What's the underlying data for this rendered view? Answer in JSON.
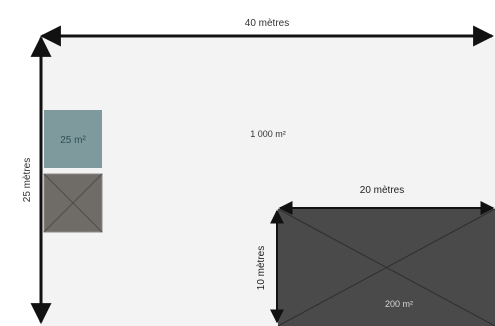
{
  "diagram": {
    "top_dimension_label": "40 mètres",
    "left_dimension_label": "25 mètres",
    "total_area_label": "1 000 m²",
    "small_area_label": "25 m²",
    "building_width_label": "20 mètres",
    "building_height_label": "10 mètres",
    "building_area_label": "200 m²"
  },
  "colors": {
    "field": "#f3f3f3",
    "arrow": "#111111",
    "small_blue": "#7f9a9d",
    "small_grey": "#6f6b67",
    "building": "#4a4a4a",
    "cross": "#2e2e2e"
  }
}
